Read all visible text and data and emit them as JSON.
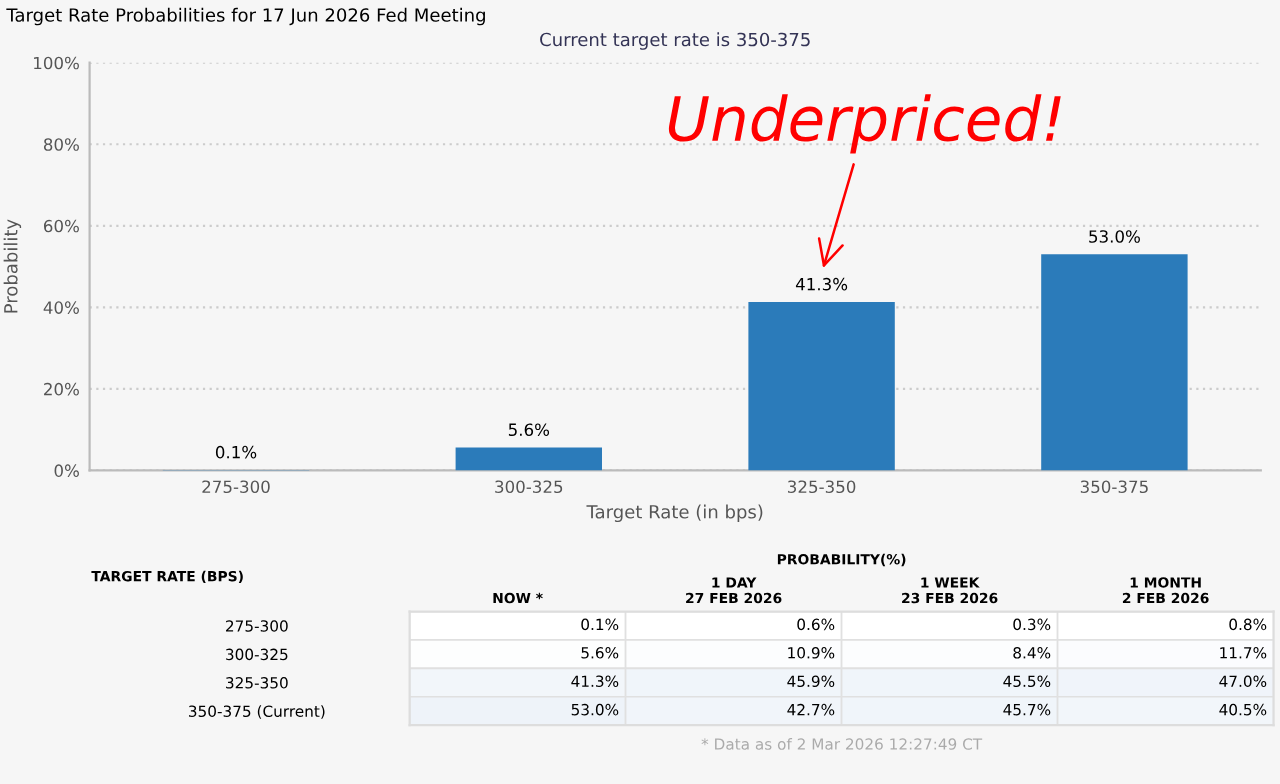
{
  "chart_data": [
    {
      "type": "bar",
      "title": "Target Rate Probabilities for 17 Jun 2026 Fed Meeting",
      "subtitle": "Current target rate is 350-375",
      "xlabel": "Target Rate (in bps)",
      "ylabel": "Probability",
      "categories": [
        "275-300",
        "300-325",
        "325-350",
        "350-375"
      ],
      "values": [
        0.1,
        5.6,
        41.3,
        53.0
      ],
      "color": "#2b7bba",
      "value_labels": [
        "0.1%",
        "5.6%",
        "41.3%",
        "53.0%"
      ],
      "ylim": [
        0,
        100
      ],
      "yticks": [
        {
          "value": 0,
          "label": "0%"
        },
        {
          "value": 20,
          "label": "20%"
        },
        {
          "value": 40,
          "label": "40%"
        },
        {
          "value": 60,
          "label": "60%"
        },
        {
          "value": 80,
          "label": "80%"
        },
        {
          "value": 100,
          "label": "100%"
        }
      ],
      "grid": "y",
      "legend": false,
      "annotations": [
        {
          "text": "Underpriced!",
          "x": "325-350",
          "y": 41.3
        }
      ]
    },
    {
      "type": "heatmap",
      "title": "PROBABILITY(%)",
      "ylabel": "TARGET RATE (BPS)",
      "categories": [
        "NOW *",
        "1 DAY\n27 FEB 2026",
        "1 WEEK\n23 FEB 2026",
        "1 MONTH\n2 FEB 2026"
      ],
      "y_categories": [
        "275-300",
        "300-325",
        "325-350",
        "350-375 (Current)"
      ],
      "cells": [
        [
          0.1,
          0.6,
          0.3,
          0.8
        ],
        [
          5.6,
          10.9,
          8.4,
          11.7
        ],
        [
          41.3,
          45.9,
          45.5,
          47.0
        ],
        [
          53.0,
          42.7,
          45.7,
          40.5
        ]
      ],
      "cell_labels": [
        [
          "0.1%",
          "0.6%",
          "0.3%",
          "0.8%"
        ],
        [
          "5.6%",
          "10.9%",
          "8.4%",
          "11.7%"
        ],
        [
          "41.3%",
          "45.9%",
          "45.5%",
          "47.0%"
        ],
        [
          "53.0%",
          "42.7%",
          "45.7%",
          "40.5%"
        ]
      ],
      "annotations": [
        "* Data as of 2 Mar 2026 12:27:49 CT"
      ]
    }
  ]
}
